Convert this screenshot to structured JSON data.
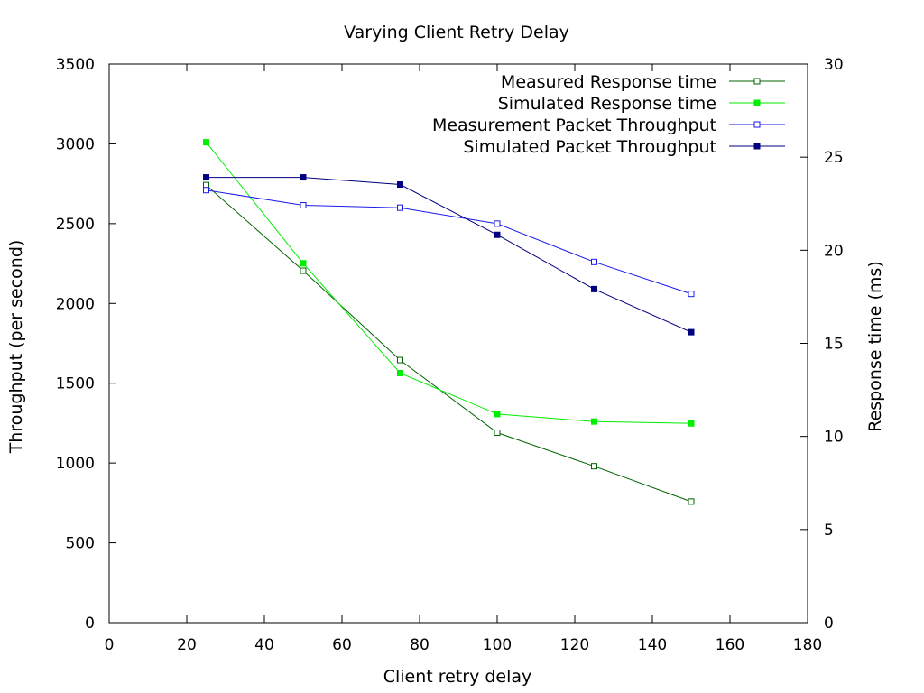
{
  "chart_data": {
    "type": "line",
    "title": "Varying Client Retry Delay",
    "xlabel": "Client retry delay",
    "ylabel": "Throughput (per second)",
    "y2label": "Response time (ms)",
    "xlim": [
      0,
      180
    ],
    "ylim": [
      0,
      3500
    ],
    "y2lim": [
      0,
      30
    ],
    "xticks": [
      0,
      20,
      40,
      60,
      80,
      100,
      120,
      140,
      160,
      180
    ],
    "yticks": [
      0,
      500,
      1000,
      1500,
      2000,
      2500,
      3000,
      3500
    ],
    "y2ticks": [
      0,
      5,
      10,
      15,
      20,
      25,
      30
    ],
    "grid": false,
    "legend_position": "top-right",
    "x": [
      25,
      50,
      75,
      100,
      125,
      150
    ],
    "series": [
      {
        "name": "Measured Response time",
        "axis": "y2",
        "color": "#006400",
        "marker": "open-square",
        "values": [
          23.5,
          18.9,
          14.1,
          10.2,
          8.4,
          6.5
        ]
      },
      {
        "name": "Simulated Response time",
        "axis": "y2",
        "color": "#00ee00",
        "marker": "filled-square",
        "values": [
          25.8,
          19.3,
          13.4,
          11.2,
          10.8,
          10.7
        ]
      },
      {
        "name": "Measurement Packet Throughput",
        "axis": "y",
        "color": "#1a1aee",
        "marker": "open-square",
        "values": [
          2710,
          2615,
          2600,
          2500,
          2260,
          2060
        ]
      },
      {
        "name": "Simulated Packet Throughput",
        "axis": "y",
        "color": "#000080",
        "marker": "filled-square",
        "values": [
          2790,
          2790,
          2745,
          2430,
          2090,
          1820
        ]
      }
    ]
  }
}
